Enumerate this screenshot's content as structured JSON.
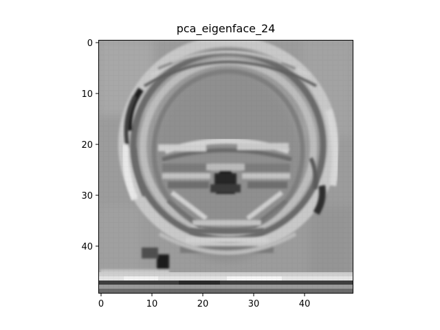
{
  "figure": {
    "title": "pca_eigenface_24",
    "image_description": "grayscale eigenface image (50x50 grid)"
  },
  "axes": {
    "y_ticks": [
      "0",
      "10",
      "20",
      "30",
      "40"
    ],
    "x_ticks": [
      "0",
      "10",
      "20",
      "30",
      "40"
    ]
  }
}
